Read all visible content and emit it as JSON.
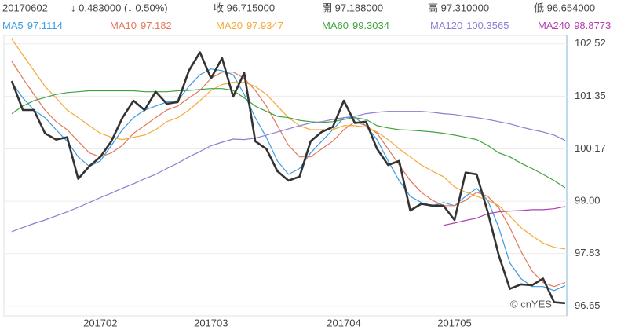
{
  "chart_data": {
    "type": "line",
    "header": [
      "20170602",
      "↓ 0.483000 (↓ 0.50%)",
      "收 96.715000",
      "開 97.188000",
      "高 97.310000",
      "低 96.654000"
    ],
    "watermark": "© cnYES",
    "categories": [
      null,
      null,
      null,
      null,
      null,
      null,
      null,
      null,
      "201702",
      null,
      null,
      null,
      null,
      null,
      null,
      null,
      null,
      null,
      "201703",
      null,
      null,
      null,
      null,
      null,
      null,
      null,
      null,
      null,
      null,
      null,
      "201704",
      null,
      null,
      null,
      null,
      null,
      null,
      null,
      null,
      null,
      "201705",
      null,
      null,
      null,
      null,
      null,
      null,
      null,
      null,
      null,
      null
    ],
    "ylim": [
      96.47,
      102.71
    ],
    "yticks": [
      102.52,
      101.35,
      100.17,
      {
        "value": 99,
        "label": "99.00"
      },
      97.83,
      96.65
    ],
    "grid": true,
    "series": [
      {
        "color": "#333333",
        "values": [
          101.69,
          101.04,
          101.04,
          100.52,
          100.38,
          100.43,
          99.5,
          99.78,
          99.99,
          100.34,
          100.87,
          101.25,
          101.04,
          101.45,
          101.18,
          101.22,
          101.92,
          102.33,
          101.75,
          102.2,
          101.34,
          101.87,
          100.34,
          100.17,
          99.67,
          99.46,
          99.55,
          100.34,
          100.55,
          100.66,
          101.25,
          100.75,
          100.78,
          100.17,
          99.81,
          99.9,
          98.79,
          98.94,
          98.9,
          98.9,
          98.58,
          99.64,
          99.6,
          98.76,
          97.79,
          97.04,
          97.14,
          97.12,
          97.27,
          96.74,
          96.72
        ]
      },
      {
        "name": "MA5",
        "last": 97.1114,
        "color": "#3d9be0",
        "values": [
          101.66,
          101.31,
          101.04,
          100.87,
          100.6,
          100.34,
          99.99,
          99.78,
          99.9,
          100.25,
          100.6,
          100.87,
          101.04,
          101.13,
          101.22,
          101.25,
          101.57,
          101.83,
          101.96,
          101.92,
          101.83,
          101.39,
          100.87,
          100.43,
          99.9,
          99.6,
          99.73,
          100.08,
          100.34,
          100.6,
          100.87,
          100.87,
          100.69,
          100.38,
          99.9,
          99.46,
          99.11,
          98.97,
          98.9,
          98.97,
          98.9,
          99.11,
          99.29,
          99.02,
          98.41,
          97.62,
          97.27,
          97.09,
          97.09,
          97.0,
          97.11
        ]
      },
      {
        "name": "MA10",
        "last": 97.182,
        "color": "#e2775a",
        "values": [
          102.13,
          101.75,
          101.39,
          101.04,
          100.78,
          100.6,
          100.34,
          100.08,
          99.99,
          100.08,
          100.25,
          100.52,
          100.69,
          100.87,
          101.04,
          101.13,
          101.31,
          101.48,
          101.75,
          101.89,
          101.89,
          101.75,
          101.48,
          101.13,
          100.69,
          100.25,
          99.99,
          99.99,
          100.17,
          100.34,
          100.6,
          100.78,
          100.69,
          100.52,
          100.17,
          99.81,
          99.46,
          99.2,
          99.02,
          98.9,
          98.9,
          99.02,
          99.2,
          99.11,
          98.85,
          98.41,
          97.88,
          97.44,
          97.18,
          97.09,
          97.18
        ]
      },
      {
        "name": "MA20",
        "last": 97.9347,
        "color": "#f4a93a",
        "values": [
          102.63,
          102.27,
          101.92,
          101.57,
          101.31,
          101.04,
          100.87,
          100.69,
          100.52,
          100.43,
          100.38,
          100.43,
          100.48,
          100.6,
          100.78,
          100.87,
          101.04,
          101.25,
          101.48,
          101.61,
          101.66,
          101.66,
          101.57,
          101.39,
          101.13,
          100.87,
          100.69,
          100.6,
          100.6,
          100.6,
          100.69,
          100.69,
          100.66,
          100.55,
          100.38,
          100.17,
          99.99,
          99.81,
          99.67,
          99.55,
          99.32,
          99.2,
          99.11,
          99.02,
          98.9,
          98.67,
          98.41,
          98.23,
          98.06,
          97.97,
          97.93
        ]
      },
      {
        "name": "MA60",
        "last": 99.3034,
        "color": "#3fa33f",
        "values": [
          100.96,
          101.13,
          101.25,
          101.32,
          101.39,
          101.43,
          101.45,
          101.47,
          101.47,
          101.47,
          101.47,
          101.47,
          101.45,
          101.45,
          101.45,
          101.47,
          101.48,
          101.5,
          101.52,
          101.52,
          101.48,
          101.31,
          101.13,
          101.01,
          100.9,
          100.87,
          100.81,
          100.78,
          100.76,
          100.78,
          100.83,
          100.87,
          100.83,
          100.69,
          100.64,
          100.6,
          100.59,
          100.57,
          100.55,
          100.52,
          100.48,
          100.43,
          100.38,
          100.25,
          100.08,
          99.99,
          99.85,
          99.73,
          99.6,
          99.46,
          99.3
        ]
      },
      {
        "name": "MA120",
        "last": 100.3565,
        "color": "#8a7fd0",
        "values": [
          98.32,
          98.41,
          98.5,
          98.58,
          98.67,
          98.76,
          98.86,
          98.97,
          99.08,
          99.18,
          99.29,
          99.39,
          99.5,
          99.6,
          99.73,
          99.85,
          99.99,
          100.11,
          100.24,
          100.32,
          100.39,
          100.38,
          100.41,
          100.48,
          100.55,
          100.62,
          100.69,
          100.75,
          100.78,
          100.83,
          100.87,
          100.9,
          100.96,
          100.99,
          101.01,
          101.01,
          101.01,
          101.01,
          100.99,
          100.96,
          100.94,
          100.9,
          100.87,
          100.83,
          100.78,
          100.73,
          100.66,
          100.6,
          100.55,
          100.48,
          100.36
        ]
      },
      {
        "name": "MA240",
        "last": 98.8773,
        "color": "#b13db1",
        "values": [
          null,
          null,
          null,
          null,
          null,
          null,
          null,
          null,
          null,
          null,
          null,
          null,
          null,
          null,
          null,
          null,
          null,
          null,
          null,
          null,
          null,
          null,
          null,
          null,
          null,
          null,
          null,
          null,
          null,
          null,
          null,
          null,
          null,
          null,
          null,
          null,
          null,
          null,
          null,
          98.46,
          98.51,
          98.57,
          98.62,
          98.72,
          98.76,
          98.78,
          98.79,
          98.81,
          98.81,
          98.83,
          98.88
        ]
      }
    ]
  }
}
